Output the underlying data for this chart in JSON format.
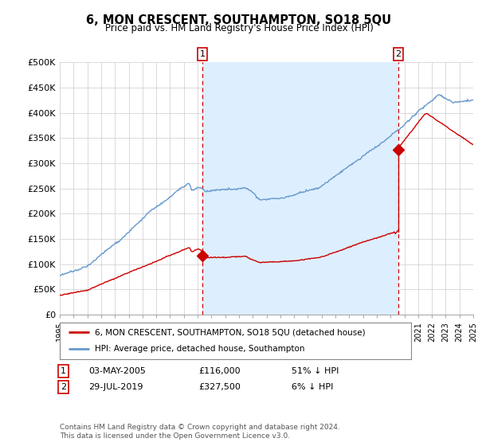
{
  "title": "6, MON CRESCENT, SOUTHAMPTON, SO18 5QU",
  "subtitle": "Price paid vs. HM Land Registry's House Price Index (HPI)",
  "ylabel_ticks": [
    "£0",
    "£50K",
    "£100K",
    "£150K",
    "£200K",
    "£250K",
    "£300K",
    "£350K",
    "£400K",
    "£450K",
    "£500K"
  ],
  "ytick_values": [
    0,
    50000,
    100000,
    150000,
    200000,
    250000,
    300000,
    350000,
    400000,
    450000,
    500000
  ],
  "x_start_year": 1995,
  "x_end_year": 2025,
  "sale1_date": 2005.35,
  "sale1_price": 116000,
  "sale1_label": "1",
  "sale2_date": 2019.57,
  "sale2_price": 327500,
  "sale2_label": "2",
  "legend_red_label": "6, MON CRESCENT, SOUTHAMPTON, SO18 5QU (detached house)",
  "legend_blue_label": "HPI: Average price, detached house, Southampton",
  "annotation1_date": "03-MAY-2005",
  "annotation1_price": "£116,000",
  "annotation1_hpi": "51% ↓ HPI",
  "annotation2_date": "29-JUL-2019",
  "annotation2_price": "£327,500",
  "annotation2_hpi": "6% ↓ HPI",
  "footer": "Contains HM Land Registry data © Crown copyright and database right 2024.\nThis data is licensed under the Open Government Licence v3.0.",
  "red_color": "#cc0000",
  "blue_color": "#6699cc",
  "fill_color": "#ddeeff",
  "grid_color": "#cccccc",
  "bg_color": "#ffffff"
}
